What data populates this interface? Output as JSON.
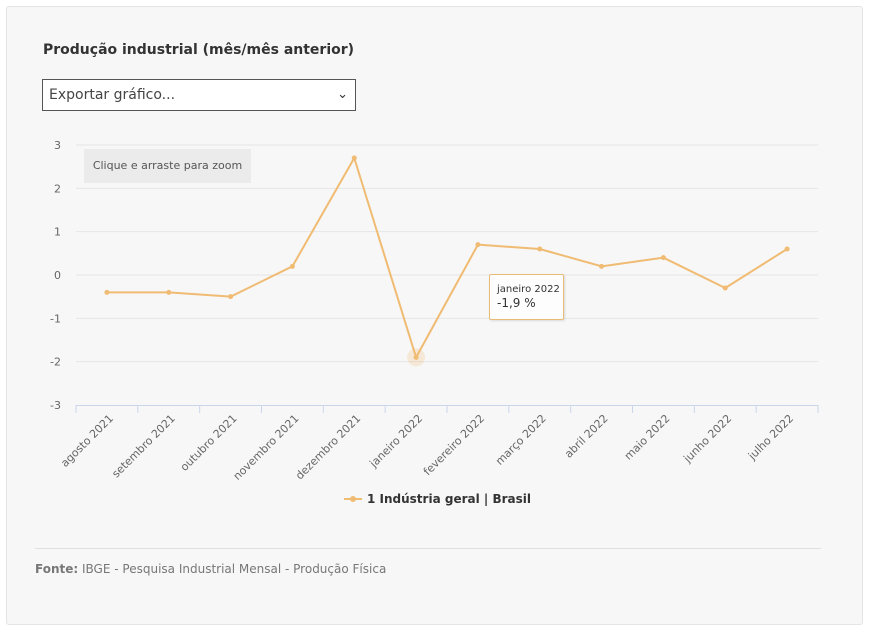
{
  "title": "Produção industrial (mês/mês anterior)",
  "export_select": {
    "value": "Exportar gráfico..."
  },
  "zoom_hint": "Clique e arraste para zoom",
  "chart_data": {
    "type": "line",
    "categories": [
      "agosto 2021",
      "setembro 2021",
      "outubro 2021",
      "novembro 2021",
      "dezembro 2021",
      "janeiro 2022",
      "fevereiro 2022",
      "março 2022",
      "abril 2022",
      "maio 2022",
      "junho 2022",
      "julho 2022"
    ],
    "series": [
      {
        "name": "1 Indústria geral | Brasil",
        "values": [
          -0.4,
          -0.4,
          -0.5,
          0.2,
          2.7,
          -1.9,
          0.7,
          0.6,
          0.2,
          0.4,
          -0.3,
          0.6
        ],
        "color": "#f0bb72"
      }
    ],
    "ylim": [
      -3,
      3
    ],
    "yticks": [
      3,
      2,
      1,
      0,
      -1,
      -2,
      -3
    ],
    "ytick_labels": [
      "3",
      "2",
      "1",
      "0",
      "-1",
      "-2",
      "-3"
    ],
    "highlight_index": 5
  },
  "tooltip": {
    "label": "janeiro 2022",
    "value": "-1,9 %"
  },
  "legend": {
    "label": "1 Indústria geral | Brasil"
  },
  "source": {
    "label": "Fonte:",
    "text": "IBGE - Pesquisa Industrial Mensal - Produção Física"
  },
  "colors": {
    "series": "#f0bb72",
    "grid": "#e6e6e6",
    "axis": "#ccd6eb"
  }
}
